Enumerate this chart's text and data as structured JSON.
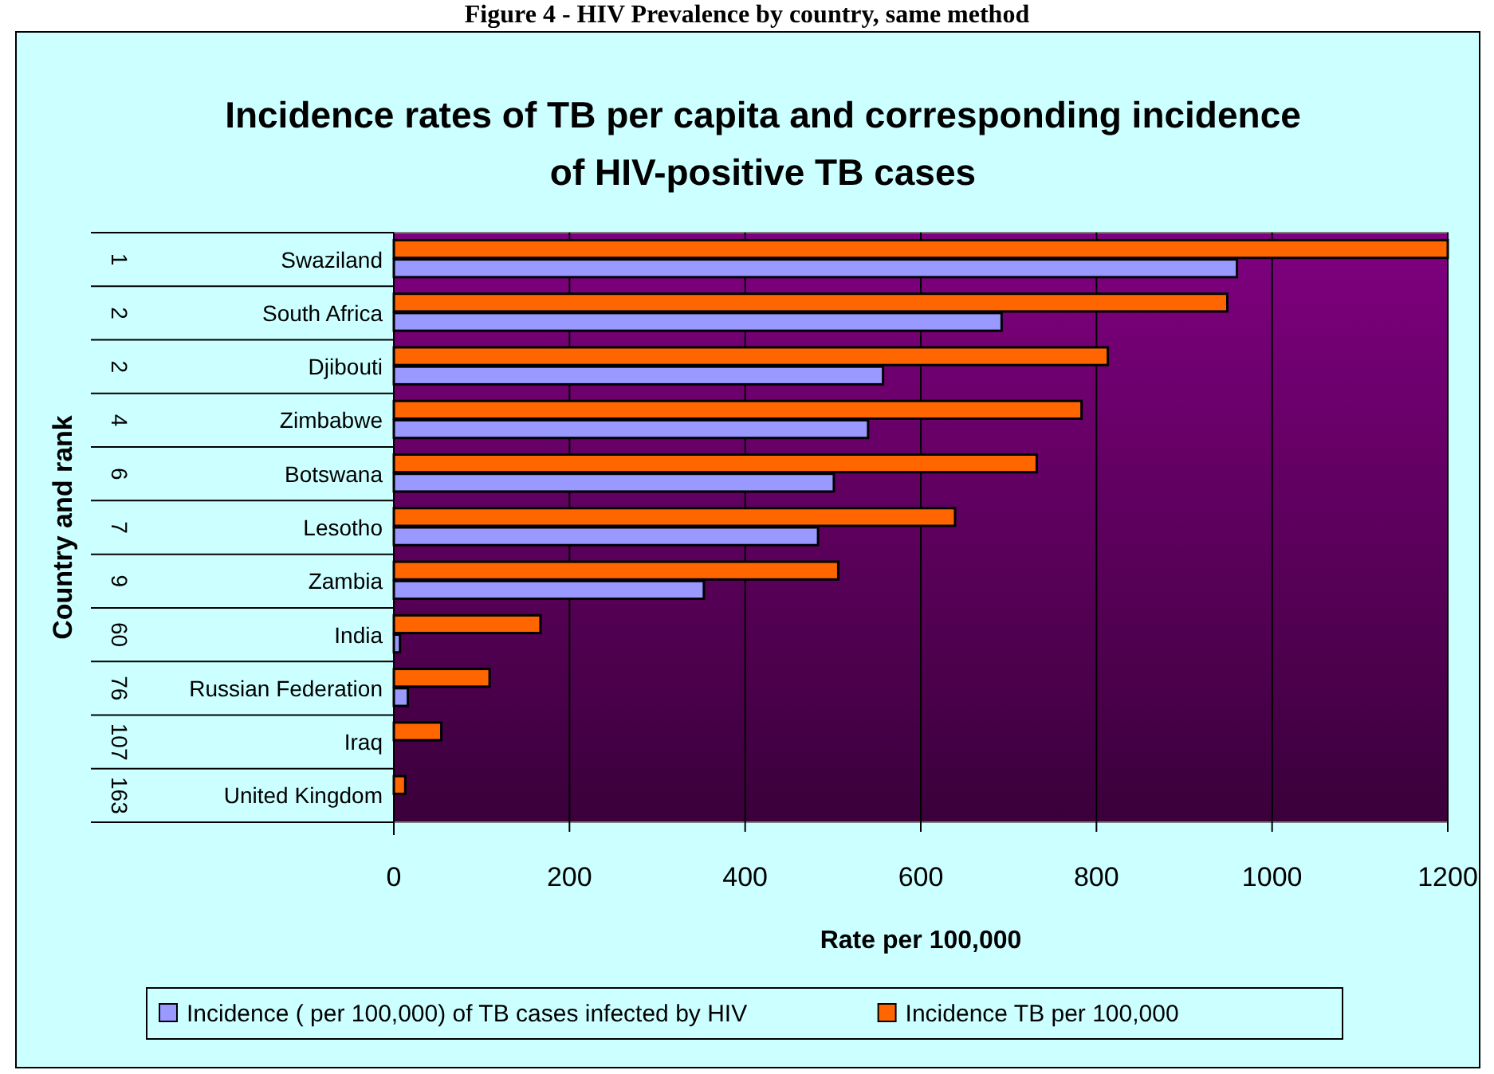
{
  "chart_data": {
    "type": "bar",
    "orientation": "horizontal",
    "title": "Incidence rates of TB per capita and corresponding incidence of HIV-positive TB cases",
    "annotations": [
      "Figure 4 - HIV Prevalence by country, same method"
    ],
    "xlabel": "Rate per 100,000",
    "ylabel": "Country and rank",
    "categories": [
      "Swaziland",
      "South Africa",
      "Djibouti",
      "Zimbabwe",
      "Botswana",
      "Lesotho",
      "Zambia",
      "India",
      "Russian Federation",
      "Iraq",
      "United Kingdom"
    ],
    "y2_categories": [
      "1",
      "2",
      "2",
      "4",
      "6",
      "7",
      "9",
      "60",
      "76",
      "107",
      "163"
    ],
    "series": [
      {
        "name": "Incidence ( per 100,000) of TB cases infected by HIV",
        "color": "#9999ff",
        "values": [
          960,
          692,
          557,
          540,
          501,
          483,
          353,
          7,
          16,
          null,
          null
        ]
      },
      {
        "name": "Incidence TB per 100,000",
        "color": "#ff6600",
        "values": [
          1200,
          949,
          813,
          783,
          732,
          639,
          506,
          167,
          109,
          54,
          13
        ]
      }
    ],
    "xlim": [
      0,
      1200
    ],
    "xticks": [
      0,
      200,
      400,
      600,
      800,
      1000,
      1200
    ],
    "grid": "x",
    "legend": "bottom"
  }
}
